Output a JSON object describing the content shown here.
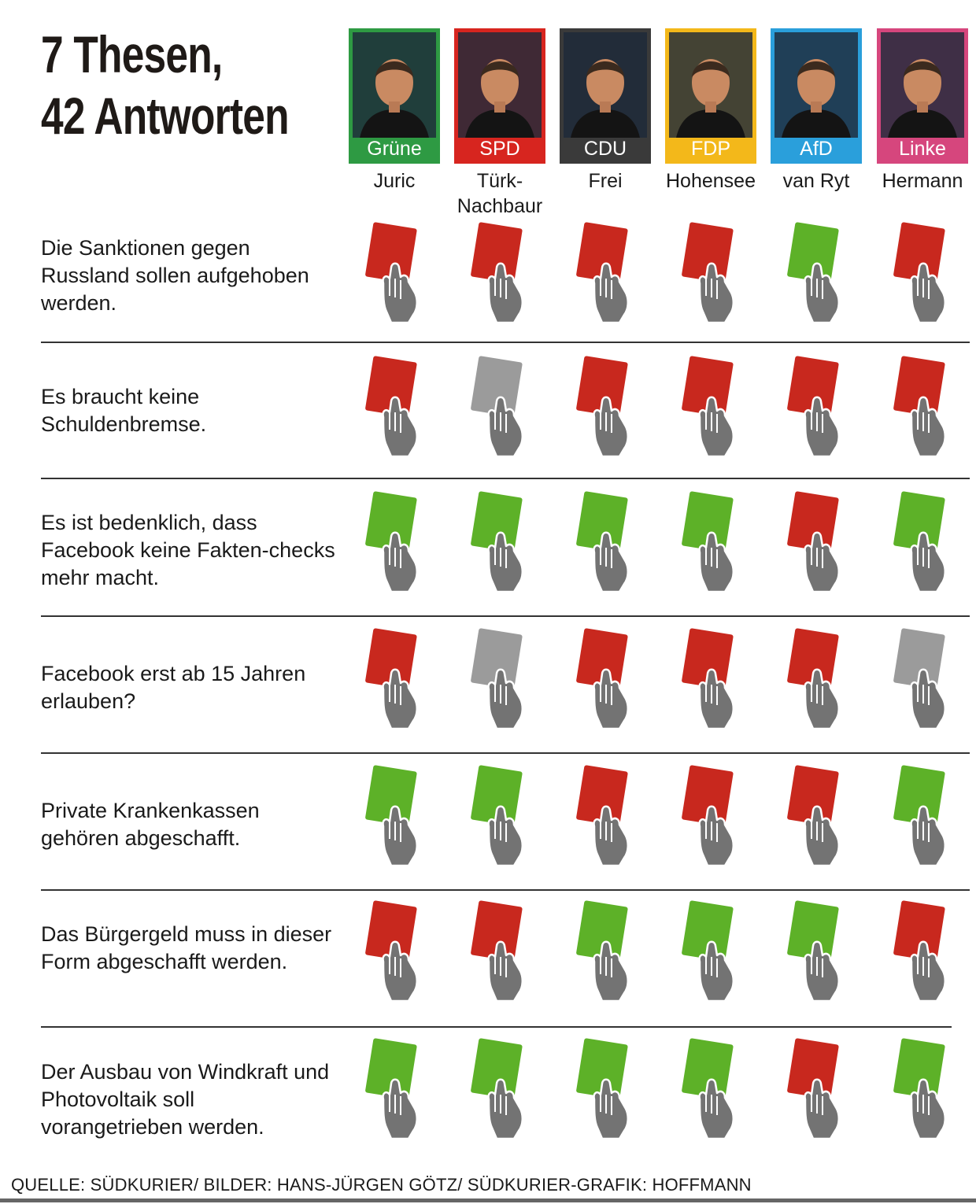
{
  "title": {
    "line1": "7 Thesen,",
    "line2": "42 Antworten"
  },
  "candidates": [
    {
      "party": "Grüne",
      "name": "Juric",
      "color": "#2e9a43"
    },
    {
      "party": "SPD",
      "name": "Türk-Nachbaur",
      "color": "#d7251f"
    },
    {
      "party": "CDU",
      "name": "Frei",
      "color": "#3a3a3a"
    },
    {
      "party": "FDP",
      "name": "Hohensee",
      "color": "#f3b81a"
    },
    {
      "party": "AfD",
      "name": "van Ryt",
      "color": "#2a9fdb"
    },
    {
      "party": "Linke",
      "name": "Hermann",
      "color": "#d6467d"
    }
  ],
  "theses": [
    {
      "text": "Die Sanktionen gegen Russland sollen aufgehoben werden.",
      "answers": [
        "red",
        "red",
        "red",
        "red",
        "green",
        "red"
      ]
    },
    {
      "text": "Es braucht keine Schuldenbremse.",
      "answers": [
        "red",
        "gray",
        "red",
        "red",
        "red",
        "red"
      ]
    },
    {
      "text": "Es ist bedenklich, dass Facebook keine Fakten-checks mehr macht.",
      "answers": [
        "green",
        "green",
        "green",
        "green",
        "red",
        "green"
      ]
    },
    {
      "text": "Facebook erst ab 15 Jahren erlauben?",
      "answers": [
        "red",
        "gray",
        "red",
        "red",
        "red",
        "gray"
      ]
    },
    {
      "text": "Private Krankenkassen gehören abgeschafft.",
      "answers": [
        "green",
        "green",
        "red",
        "red",
        "red",
        "green"
      ]
    },
    {
      "text": "Das Bürgergeld muss in dieser Form abgeschafft werden.",
      "answers": [
        "red",
        "red",
        "green",
        "green",
        "green",
        "red"
      ]
    },
    {
      "text": "Der Ausbau von Windkraft und Photovoltaik soll vorangetrieben werden.",
      "answers": [
        "green",
        "green",
        "green",
        "green",
        "red",
        "green"
      ]
    }
  ],
  "card_colors": {
    "red": "#c8281e",
    "green": "#5db128",
    "gray": "#9b9b9b",
    "hand": "#737373"
  },
  "source": "QUELLE: SÜDKURIER/ BILDER: HANS-JÜRGEN GÖTZ/ SÜDKURIER-GRAFIK: HOFFMANN"
}
